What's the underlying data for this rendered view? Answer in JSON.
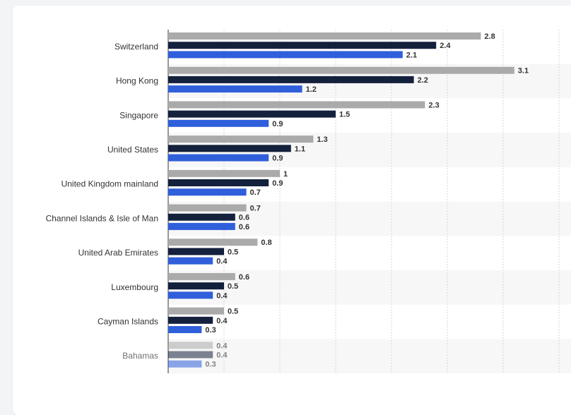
{
  "chart_data": {
    "type": "bar",
    "orientation": "horizontal",
    "categories": [
      "Switzerland",
      "Hong Kong",
      "Singapore",
      "United States",
      "United Kingdom mainland",
      "Channel Islands & Isle of Man",
      "United Arab Emirates",
      "Luxembourg",
      "Cayman Islands",
      "Bahamas"
    ],
    "series": [
      {
        "values": [
          2.8,
          3.1,
          2.3,
          1.3,
          1,
          0.7,
          0.8,
          0.6,
          0.5,
          0.4
        ],
        "value_labels": [
          "2.8",
          "3.1",
          "2.3",
          "1.3",
          "1",
          "0.7",
          "0.8",
          "0.6",
          "0.5",
          "0.4"
        ],
        "color": "#aaaaaa"
      },
      {
        "values": [
          2.4,
          2.2,
          1.5,
          1.1,
          0.9,
          0.6,
          0.5,
          0.5,
          0.4,
          0.4
        ],
        "value_labels": [
          "2.4",
          "2.2",
          "1.5",
          "1.1",
          "0.9",
          "0.6",
          "0.5",
          "0.5",
          "0.4",
          "0.4"
        ],
        "color": "#14213d"
      },
      {
        "values": [
          2.1,
          1.2,
          0.9,
          0.9,
          0.7,
          0.6,
          0.4,
          0.4,
          0.3,
          0.3
        ],
        "value_labels": [
          "2.1",
          "1.2",
          "0.9",
          "0.9",
          "0.7",
          "0.6",
          "0.4",
          "0.4",
          "0.3",
          "0.3"
        ],
        "color": "#2f5fdb"
      }
    ],
    "xlim": [
      0,
      3.5
    ],
    "grid": true,
    "faded_last_category": true
  }
}
